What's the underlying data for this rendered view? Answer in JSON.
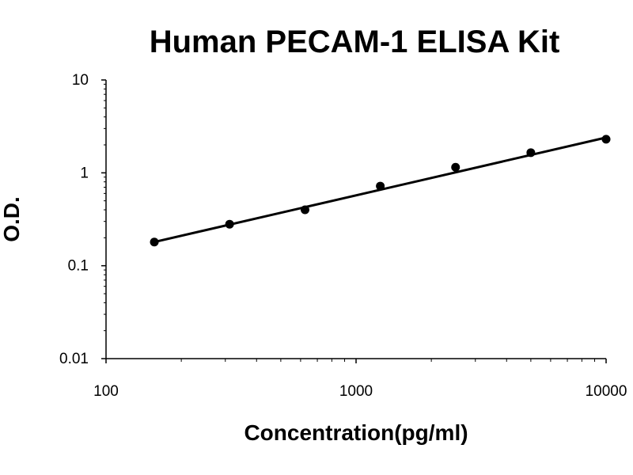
{
  "chart_data": {
    "type": "scatter",
    "title": "Human PECAM-1 ELISA Kit",
    "xlabel": "Concentration(pg/ml)",
    "ylabel": "O.D.",
    "x_scale": "log",
    "y_scale": "log",
    "xlim": [
      100,
      10000
    ],
    "ylim": [
      0.01,
      10
    ],
    "x_tick_labels": [
      "100",
      "1000",
      "10000"
    ],
    "y_tick_labels": [
      "0.01",
      "0.1",
      "1",
      "10"
    ],
    "grid": false,
    "legend": "none",
    "colors": {
      "points": "#000000",
      "line": "#000000",
      "axis": "#000000"
    },
    "series": [
      {
        "x": [
          156,
          312,
          625,
          1250,
          2500,
          5000,
          10000
        ],
        "y": [
          0.18,
          0.28,
          0.4,
          0.72,
          1.15,
          1.65,
          2.3
        ]
      }
    ],
    "trendline": {
      "type": "power",
      "x": [
        156,
        10000
      ],
      "y": [
        0.18,
        2.4
      ]
    }
  }
}
